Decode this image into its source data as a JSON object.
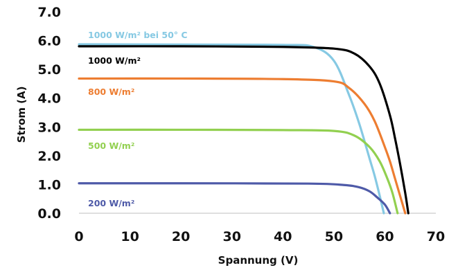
{
  "chart_data": {
    "type": "line",
    "xlabel": "Spannung (V)",
    "ylabel": "Strom (A)",
    "xlim": [
      0,
      70
    ],
    "ylim": [
      0,
      7
    ],
    "x_ticks": [
      "0",
      "10",
      "20",
      "30",
      "40",
      "50",
      "60",
      "70"
    ],
    "y_ticks": [
      "0.0",
      "1.0",
      "2.0",
      "3.0",
      "4.0",
      "5.0",
      "6.0",
      "7.0"
    ],
    "grid": false,
    "legend": "none",
    "series": [
      {
        "name": "1000 W/m² bei 50° C",
        "color": "#86c9e3",
        "x": [
          0,
          20,
          40,
          46,
          50,
          53,
          55,
          57,
          58,
          59,
          59.8
        ],
        "y": [
          5.87,
          5.86,
          5.85,
          5.78,
          5.3,
          4.1,
          3.1,
          1.9,
          1.3,
          0.6,
          0
        ]
      },
      {
        "name": "1000 W/m²",
        "color": "#000000",
        "x": [
          0,
          20,
          40,
          50,
          54,
          57,
          59,
          61,
          62,
          63,
          64,
          64.6
        ],
        "y": [
          5.8,
          5.8,
          5.78,
          5.72,
          5.55,
          5.1,
          4.5,
          3.4,
          2.6,
          1.7,
          0.7,
          0
        ]
      },
      {
        "name": "800 W/m²",
        "color": "#ed7d31",
        "x": [
          0,
          20,
          40,
          50,
          53,
          56,
          58,
          60,
          61,
          62,
          63,
          64
        ],
        "y": [
          4.68,
          4.68,
          4.66,
          4.58,
          4.35,
          3.8,
          3.2,
          2.3,
          1.8,
          1.2,
          0.6,
          0
        ]
      },
      {
        "name": "500 W/m²",
        "color": "#92d050",
        "x": [
          0,
          20,
          40,
          50,
          54,
          57,
          59,
          60.5,
          61.5,
          62.5
        ],
        "y": [
          2.9,
          2.9,
          2.89,
          2.86,
          2.7,
          2.3,
          1.8,
          1.2,
          0.7,
          0
        ]
      },
      {
        "name": "200 W/m²",
        "color": "#4e5aa8",
        "x": [
          0,
          20,
          45,
          52,
          55,
          57,
          58.5,
          60,
          61
        ],
        "y": [
          1.04,
          1.04,
          1.03,
          0.98,
          0.9,
          0.76,
          0.55,
          0.3,
          0
        ]
      }
    ]
  }
}
